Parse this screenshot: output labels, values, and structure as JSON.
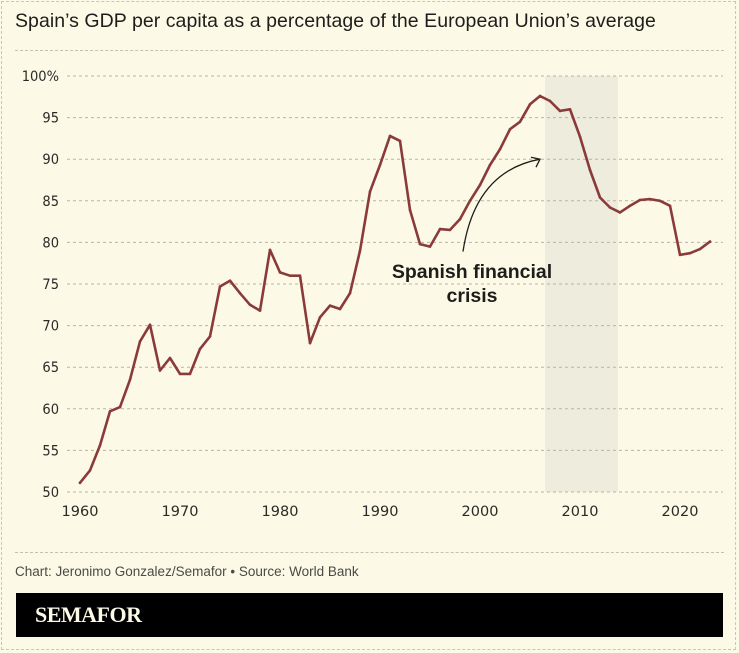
{
  "title": "Spain’s GDP per capita as a percentage of the European Union’s average",
  "credit": "Chart: Jeronimo Gonzalez/Semafor • Source: World Bank",
  "brand": "SEMAFOR",
  "colors": {
    "background": "#fcfae6",
    "line": "#8b3a3a",
    "shade": "#eeecdc",
    "grid": "#b8b5a6",
    "text": "#1d1d1b",
    "brand_bar": "#000000"
  },
  "chart_data": {
    "type": "line",
    "title": "Spain’s GDP per capita as a percentage of the European Union’s average",
    "xlabel": "",
    "ylabel": "",
    "xlim": [
      1959,
      2024
    ],
    "ylim": [
      50,
      100
    ],
    "grid": true,
    "x_ticks": [
      1960,
      1970,
      1980,
      1990,
      2000,
      2010,
      2020
    ],
    "x_tick_labels": [
      "1960",
      "1970",
      "1980",
      "1990",
      "2000",
      "2010",
      "2020"
    ],
    "y_ticks": [
      50,
      55,
      60,
      65,
      70,
      75,
      80,
      85,
      90,
      95,
      100
    ],
    "y_tick_labels": [
      "50",
      "55",
      "60",
      "65",
      "70",
      "75",
      "80",
      "85",
      "90",
      "95",
      "100%"
    ],
    "series": [
      {
        "name": "Spain GDP per capita (% of EU average)",
        "x": [
          1960,
          1961,
          1962,
          1963,
          1964,
          1965,
          1966,
          1967,
          1968,
          1969,
          1970,
          1971,
          1972,
          1973,
          1974,
          1975,
          1976,
          1977,
          1978,
          1979,
          1980,
          1981,
          1982,
          1983,
          1984,
          1985,
          1986,
          1987,
          1988,
          1989,
          1990,
          1991,
          1992,
          1993,
          1994,
          1995,
          1996,
          1997,
          1998,
          1999,
          2000,
          2001,
          2002,
          2003,
          2004,
          2005,
          2006,
          2007,
          2008,
          2009,
          2010,
          2011,
          2012,
          2013,
          2014,
          2015,
          2016,
          2017,
          2018,
          2019,
          2020,
          2021,
          2022,
          2023
        ],
        "values": [
          51.1,
          52.6,
          55.6,
          59.7,
          60.2,
          63.5,
          68.1,
          70.1,
          64.6,
          66.1,
          64.2,
          64.2,
          67.2,
          68.7,
          74.7,
          75.4,
          73.9,
          72.5,
          71.8,
          79.1,
          76.4,
          76.0,
          76.0,
          67.9,
          71.0,
          72.4,
          72.0,
          73.9,
          79.0,
          86.1,
          89.3,
          92.8,
          92.2,
          83.9,
          79.8,
          79.5,
          81.6,
          81.5,
          82.8,
          85.0,
          86.9,
          89.3,
          91.2,
          93.6,
          94.5,
          96.6,
          97.6,
          97.0,
          95.8,
          96.0,
          92.7,
          88.7,
          85.4,
          84.2,
          83.6,
          84.4,
          85.1,
          85.2,
          85.0,
          84.4,
          78.5,
          78.7,
          79.2,
          80.1
        ]
      }
    ],
    "shaded_period": {
      "label": "Spanish financial crisis",
      "start": 2006.5,
      "end": 2013.8
    },
    "annotations": [
      {
        "lines": [
          "Spanish financial",
          "crisis"
        ],
        "x": 1998,
        "y": 76.5,
        "arrow_from": [
          1998.3,
          78.9
        ],
        "arrow_to": [
          2006,
          90.0
        ]
      }
    ]
  }
}
